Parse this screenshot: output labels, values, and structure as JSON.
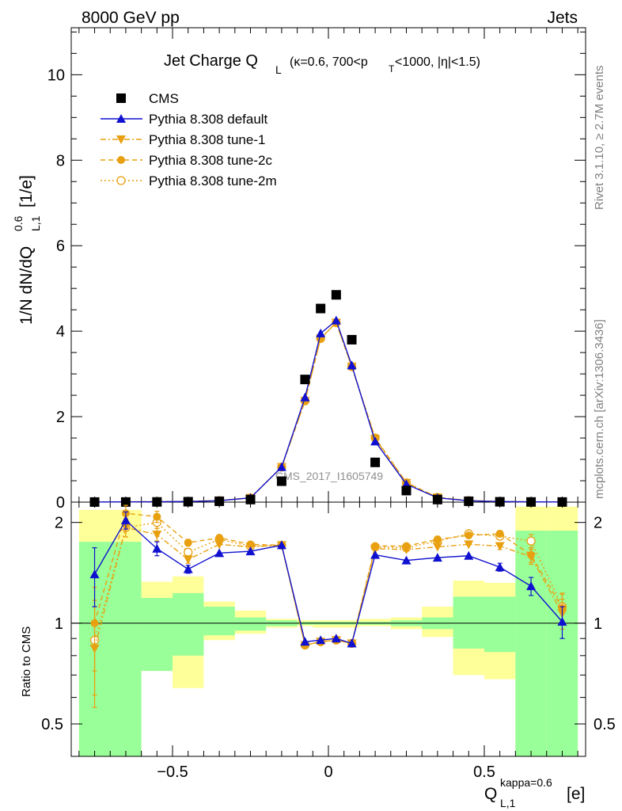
{
  "header": {
    "left": "8000 GeV pp",
    "right": "Jets",
    "plot_title_main": "Jet Charge Q",
    "plot_title_sub": "L",
    "plot_title_rest": "(κ=0.6, 700<p",
    "plot_title_pt_sub": "T",
    "plot_title_end": "<1000, |η|<1.5)"
  },
  "side_text": {
    "rivet": "Rivet 3.1.10, ≥ 2.7M events",
    "mcplots": "mcplots.cern.ch [arXiv:1306.3436]"
  },
  "watermark": "CMS_2017_I1605749",
  "axes": {
    "ylabel_main_a": "1/N dN/dQ",
    "ylabel_main_sup": "0.6",
    "ylabel_main_sub": "L,1",
    "ylabel_main_unit": "[1/e]",
    "ylabel_ratio": "Ratio to CMS",
    "xlabel_main": "Q",
    "xlabel_sup": "kappa=0.6",
    "xlabel_sub": "L,1",
    "xlabel_unit": "[e]",
    "main_yticks": [
      "0",
      "2",
      "4",
      "6",
      "8",
      "10"
    ],
    "ratio_yticks": [
      "0.5",
      "1",
      "2"
    ],
    "xticks": [
      "−0.5",
      "0",
      "0.5"
    ]
  },
  "legend": {
    "cms": "CMS",
    "default": "Pythia 8.308 default",
    "tune1": "Pythia 8.308 tune-1",
    "tune2c": "Pythia 8.308 tune-2c",
    "tune2m": "Pythia 8.308 tune-2m"
  },
  "colors": {
    "cms": "#000000",
    "default": "#1010d0",
    "tunes": "#e8a010",
    "band_inner": "#99ff99",
    "band_outer": "#ffff99"
  },
  "chart_data": {
    "type": "line",
    "x": [
      -0.75,
      -0.65,
      -0.55,
      -0.45,
      -0.35,
      -0.25,
      -0.15,
      -0.075,
      -0.025,
      0.025,
      0.075,
      0.15,
      0.25,
      0.35,
      0.45,
      0.55,
      0.65,
      0.75
    ],
    "xlim": [
      -0.825,
      0.825
    ],
    "main_ylim": [
      0,
      11.1
    ],
    "ratio_ylim": [
      0.4,
      2.3
    ],
    "ratio_scale": "log",
    "series": [
      {
        "name": "CMS",
        "key": "cms",
        "values": [
          0.002,
          0.003,
          0.005,
          0.01,
          0.02,
          0.06,
          0.49,
          2.87,
          4.53,
          4.85,
          3.8,
          0.93,
          0.27,
          0.06,
          0.02,
          0.008,
          0.004,
          0.003
        ]
      },
      {
        "name": "Pythia 8.308 default",
        "key": "default",
        "values": [
          0.003,
          0.006,
          0.008,
          0.015,
          0.033,
          0.1,
          0.82,
          2.45,
          3.95,
          4.25,
          3.2,
          1.42,
          0.42,
          0.1,
          0.032,
          0.012,
          0.005,
          0.003
        ]
      },
      {
        "name": "Pythia 8.308 tune-1",
        "key": "tune1",
        "values": [
          0.002,
          0.006,
          0.009,
          0.017,
          0.035,
          0.1,
          0.82,
          2.37,
          3.83,
          4.2,
          3.17,
          1.48,
          0.45,
          0.11,
          0.034,
          0.014,
          0.006,
          0.003
        ]
      },
      {
        "name": "Pythia 8.308 tune-2c",
        "key": "tune2c",
        "values": [
          0.002,
          0.006,
          0.01,
          0.018,
          0.036,
          0.1,
          0.82,
          2.37,
          3.83,
          4.2,
          3.17,
          1.5,
          0.46,
          0.11,
          0.036,
          0.015,
          0.006,
          0.003
        ]
      },
      {
        "name": "Pythia 8.308 tune-2m",
        "key": "tune2m",
        "values": [
          0.002,
          0.006,
          0.01,
          0.017,
          0.036,
          0.1,
          0.82,
          2.37,
          3.83,
          4.2,
          3.17,
          1.5,
          0.45,
          0.11,
          0.036,
          0.015,
          0.006,
          0.003
        ]
      }
    ],
    "ratio_series": [
      {
        "key": "default",
        "values": [
          1.4,
          2.03,
          1.67,
          1.45,
          1.62,
          1.64,
          1.71,
          0.88,
          0.89,
          0.9,
          0.87,
          1.6,
          1.54,
          1.57,
          1.59,
          1.47,
          1.29,
          1.01
        ],
        "errors": [
          0.28,
          0.12,
          0.08,
          0.04,
          0.03,
          0.03,
          0.02,
          0.02,
          0.02,
          0.02,
          0.02,
          0.02,
          0.03,
          0.03,
          0.03,
          0.04,
          0.08,
          0.11
        ]
      },
      {
        "key": "tune1",
        "values": [
          0.84,
          1.93,
          1.84,
          1.55,
          1.72,
          1.69,
          1.71,
          0.86,
          0.88,
          0.89,
          0.87,
          1.67,
          1.66,
          1.69,
          1.72,
          1.7,
          1.58,
          1.07
        ],
        "errors": [
          0.28,
          0.12,
          0.08,
          0.04,
          0.03,
          0.03,
          0.02,
          0.02,
          0.02,
          0.02,
          0.02,
          0.02,
          0.03,
          0.03,
          0.03,
          0.04,
          0.08,
          0.11
        ]
      },
      {
        "key": "tune2c",
        "values": [
          1.0,
          2.13,
          2.08,
          1.74,
          1.8,
          1.72,
          1.71,
          0.86,
          0.88,
          0.89,
          0.87,
          1.7,
          1.7,
          1.78,
          1.83,
          1.85,
          1.6,
          1.11
        ],
        "errors": [
          0.28,
          0.12,
          0.08,
          0.04,
          0.03,
          0.03,
          0.02,
          0.02,
          0.02,
          0.02,
          0.02,
          0.02,
          0.03,
          0.03,
          0.03,
          0.04,
          0.08,
          0.11
        ]
      },
      {
        "key": "tune2m",
        "values": [
          0.89,
          1.93,
          2.0,
          1.63,
          1.78,
          1.7,
          1.71,
          0.86,
          0.88,
          0.89,
          0.87,
          1.69,
          1.68,
          1.76,
          1.85,
          1.82,
          1.76,
          1.12
        ],
        "errors": [
          0.28,
          0.12,
          0.08,
          0.04,
          0.03,
          0.03,
          0.02,
          0.02,
          0.02,
          0.02,
          0.02,
          0.02,
          0.03,
          0.03,
          0.03,
          0.04,
          0.08,
          0.11
        ]
      }
    ],
    "cms_uncertainty_bands": {
      "bin_edges": [
        -0.8,
        -0.6,
        -0.5,
        -0.4,
        -0.3,
        -0.2,
        -0.1,
        -0.05,
        0.0,
        0.05,
        0.1,
        0.2,
        0.3,
        0.4,
        0.5,
        0.6,
        0.7,
        0.8
      ],
      "inner": [
        [
          0.4,
          1.75
        ],
        [
          0.72,
          1.19
        ],
        [
          0.8,
          1.23
        ],
        [
          0.92,
          1.12
        ],
        [
          0.95,
          1.04
        ],
        [
          0.98,
          1.02
        ],
        [
          0.99,
          1.01
        ],
        [
          0.99,
          1.01
        ],
        [
          0.99,
          1.01
        ],
        [
          0.99,
          1.01
        ],
        [
          0.99,
          1.01
        ],
        [
          0.98,
          1.02
        ],
        [
          0.96,
          1.04
        ],
        [
          0.84,
          1.2
        ],
        [
          0.82,
          1.2
        ],
        [
          0.4,
          1.89
        ],
        [
          0.4,
          1.89
        ]
      ],
      "outer": [
        [
          0.4,
          2.18
        ],
        [
          0.72,
          1.33
        ],
        [
          0.64,
          1.38
        ],
        [
          0.89,
          1.16
        ],
        [
          0.93,
          1.09
        ],
        [
          0.97,
          1.03
        ],
        [
          0.98,
          1.02
        ],
        [
          0.97,
          1.02
        ],
        [
          0.97,
          1.02
        ],
        [
          0.97,
          1.02
        ],
        [
          0.98,
          1.03
        ],
        [
          0.96,
          1.04
        ],
        [
          0.91,
          1.12
        ],
        [
          0.7,
          1.34
        ],
        [
          0.68,
          1.32
        ],
        [
          0.4,
          2.23
        ],
        [
          0.4,
          2.23
        ]
      ]
    }
  }
}
